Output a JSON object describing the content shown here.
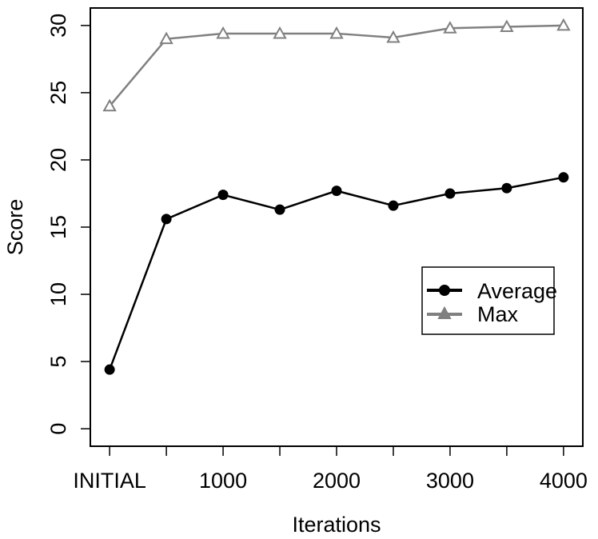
{
  "chart_data": {
    "type": "line",
    "xlabel": "Iterations",
    "ylabel": "Score",
    "x": [
      0,
      500,
      1000,
      1500,
      2000,
      2500,
      3000,
      3500,
      4000
    ],
    "x_tick_values": [
      0,
      1000,
      2000,
      3000,
      4000
    ],
    "x_tick_labels": [
      "INITIAL",
      "1000",
      "2000",
      "3000",
      "4000"
    ],
    "xlim": [
      -170,
      4170
    ],
    "y_ticks": [
      0,
      5,
      10,
      15,
      20,
      25,
      30
    ],
    "ylim": [
      -1.3,
      31.3
    ],
    "series": [
      {
        "name": "Average",
        "color": "#000000",
        "marker": "filled-circle",
        "values": [
          4.4,
          15.6,
          17.4,
          16.3,
          17.7,
          16.6,
          17.5,
          17.9,
          18.7
        ]
      },
      {
        "name": "Max",
        "color": "#808080",
        "marker": "open-triangle",
        "values": [
          24.0,
          29.0,
          29.4,
          29.4,
          29.4,
          29.1,
          29.8,
          29.9,
          30.0
        ]
      }
    ],
    "legend": {
      "position": "right",
      "entries": [
        "Average",
        "Max"
      ]
    },
    "grid": false
  }
}
